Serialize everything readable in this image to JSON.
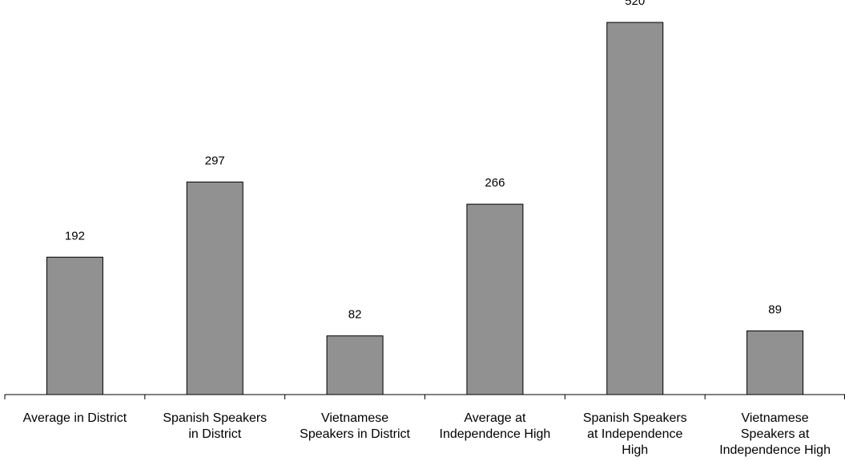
{
  "chart_data": {
    "type": "bar",
    "categories": [
      [
        "Average in District"
      ],
      [
        "Spanish Speakers",
        "in District"
      ],
      [
        "Vietnamese",
        "Speakers in District"
      ],
      [
        "Average at",
        "Independence High"
      ],
      [
        "Spanish Speakers",
        "at Independence",
        "High"
      ],
      [
        "Vietnamese",
        "Speakers at",
        "Independence High"
      ]
    ],
    "values": [
      192,
      297,
      82,
      266,
      520,
      89
    ],
    "value_labels": [
      "192",
      "297",
      "82",
      "266",
      "520",
      "89"
    ],
    "title": "",
    "xlabel": "",
    "ylabel": "",
    "ylim": [
      0,
      520
    ],
    "grid": false,
    "legend": "none",
    "colors": {
      "bar_fill": "#919191",
      "bar_stroke": "#000000",
      "axis": "#000000",
      "text": "#000000"
    }
  }
}
